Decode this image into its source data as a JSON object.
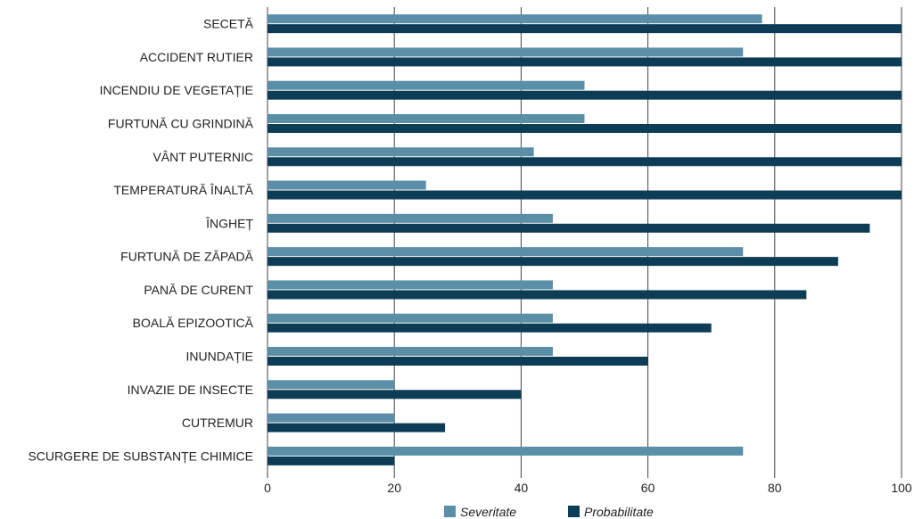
{
  "chart_data": {
    "type": "bar",
    "orientation": "horizontal",
    "categories": [
      "SECETĂ",
      "ACCIDENT RUTIER",
      "INCENDIU DE VEGETAȚIE",
      "FURTUNĂ CU GRINDINĂ",
      "VÂNT PUTERNIC",
      "TEMPERATURĂ ÎNALTĂ",
      "ÎNGHEȚ",
      "FURTUNĂ DE ZĂPADĂ",
      "PANĂ DE CURENT",
      "BOALĂ EPIZOOTICĂ",
      "INUNDAȚIE",
      "INVAZIE DE INSECTE",
      "CUTREMUR",
      "SCURGERE DE SUBSTANȚE CHIMICE"
    ],
    "series": [
      {
        "name": "Severitate",
        "color": "#5b8fa8",
        "values": [
          78,
          75,
          50,
          50,
          42,
          25,
          45,
          75,
          45,
          45,
          45,
          20,
          20,
          75
        ]
      },
      {
        "name": "Probabilitate",
        "color": "#0d3d56",
        "values": [
          100,
          100,
          100,
          100,
          100,
          100,
          95,
          90,
          85,
          70,
          60,
          40,
          28,
          20
        ]
      }
    ],
    "xlim": [
      0,
      100
    ],
    "xticks": [
      "0",
      "20",
      "40",
      "60",
      "80",
      "100"
    ],
    "grid": true,
    "legend_position": "bottom-center",
    "title": "",
    "xlabel": "",
    "ylabel": ""
  }
}
